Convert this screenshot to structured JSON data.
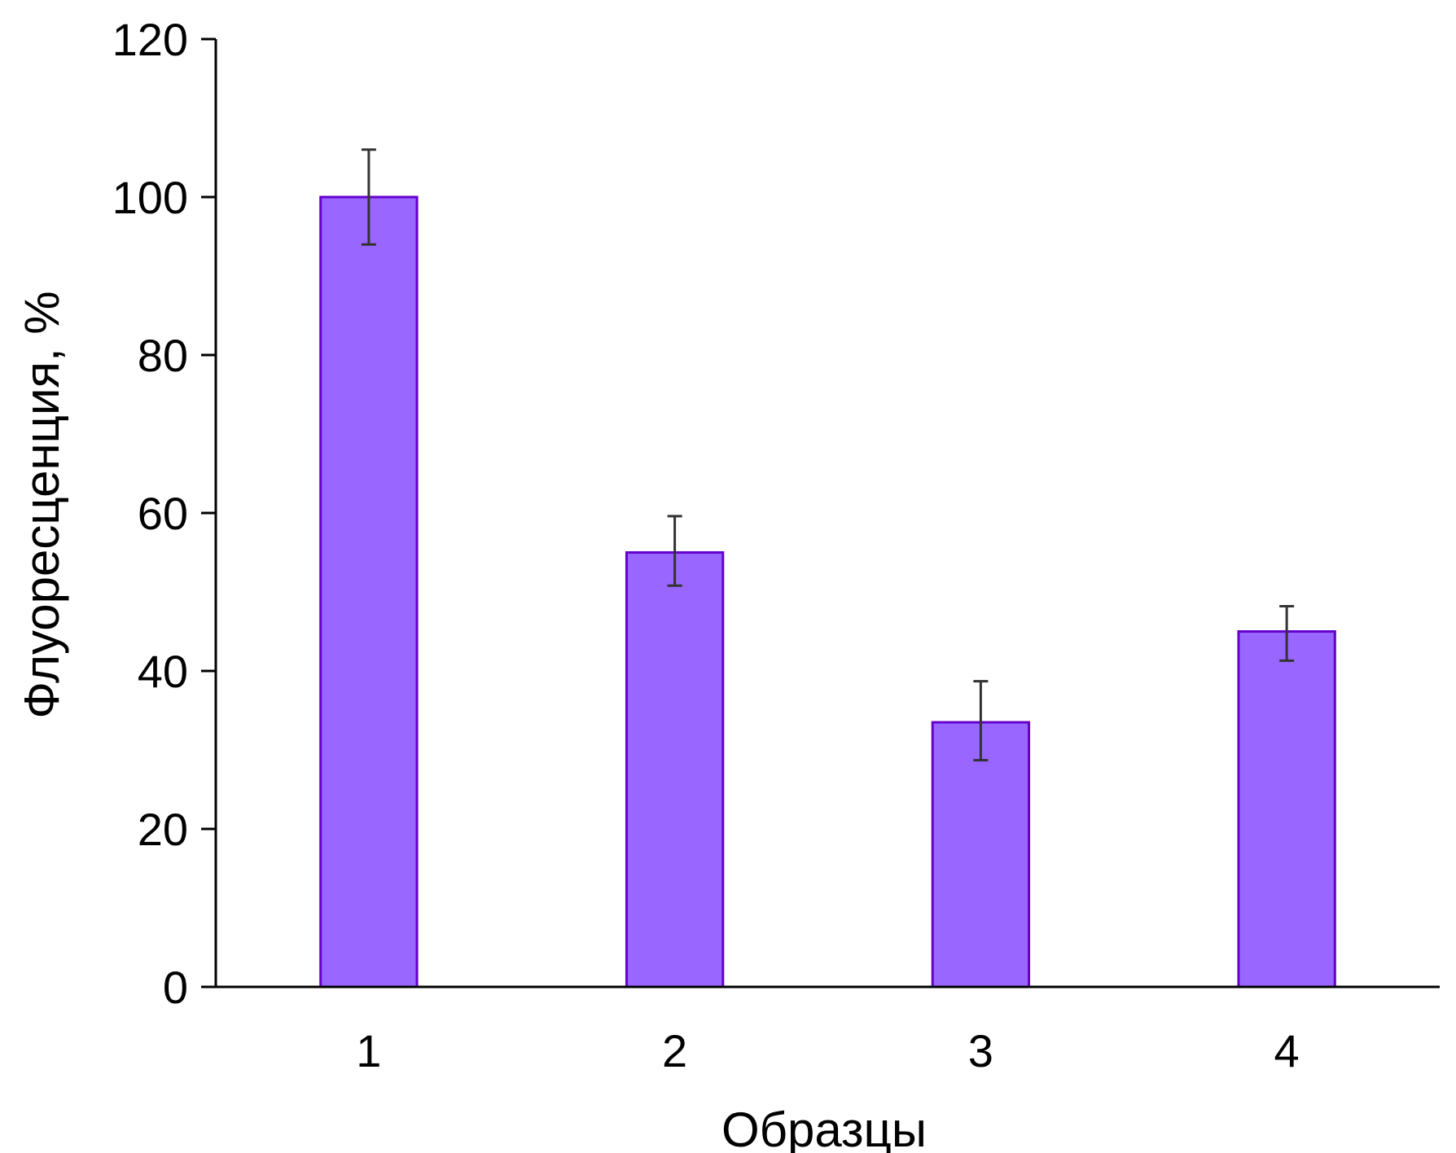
{
  "chart_data": {
    "type": "bar",
    "title": "",
    "xlabel": "Образцы",
    "ylabel": "Флуоресценция, %",
    "categories": [
      "1",
      "2",
      "3",
      "4"
    ],
    "values": [
      100,
      55,
      33.5,
      45
    ],
    "errors": [
      [
        94,
        106
      ],
      [
        50.8,
        59.6
      ],
      [
        28.7,
        38.7
      ],
      [
        41.3,
        48.2
      ]
    ],
    "ylim": [
      0,
      120
    ],
    "yticks": [
      "0",
      "20",
      "40",
      "60",
      "80",
      "100",
      "120"
    ],
    "grid": false,
    "legend": "none",
    "bar_color": "#9966ff",
    "bar_edge_color": "#6600cc",
    "error_color": "#333333"
  }
}
